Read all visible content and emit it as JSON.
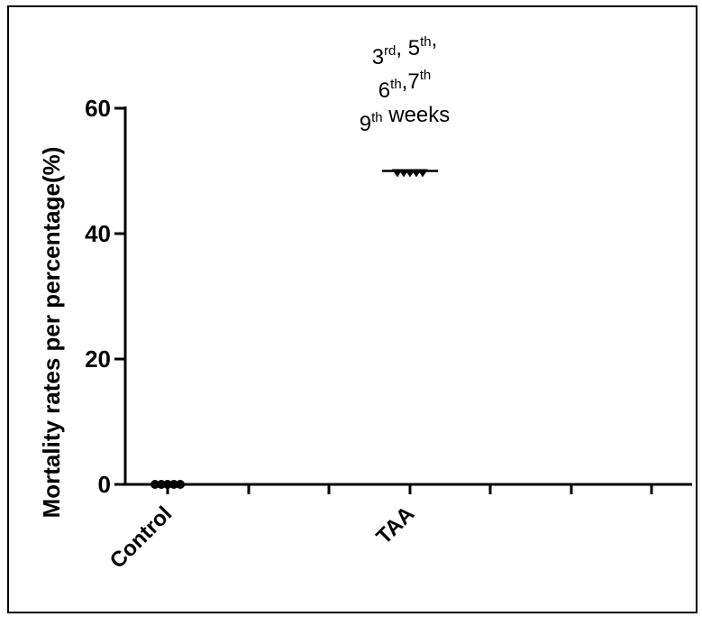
{
  "chart_data": {
    "type": "scatter",
    "ylabel": "Mortality rates per percentage(%)",
    "xlabel": "",
    "ylim": [
      0,
      60
    ],
    "yticks": [
      0,
      20,
      40,
      60
    ],
    "categories": [
      "Control",
      "TAA"
    ],
    "series": [
      {
        "category": "Control",
        "values": [
          0,
          0,
          0,
          0,
          0
        ],
        "marker": "circle",
        "mean": 0
      },
      {
        "category": "TAA",
        "values": [
          50,
          50,
          50,
          50,
          50
        ],
        "marker": "triangle-down",
        "mean": 50
      }
    ],
    "annotations": [
      {
        "category": "TAA",
        "lines": [
          [
            {
              "t": "3"
            },
            {
              "t": "rd",
              "sup": true
            },
            {
              "t": ", 5"
            },
            {
              "t": "th",
              "sup": true
            },
            {
              "t": ","
            }
          ],
          [
            {
              "t": "6"
            },
            {
              "t": "th",
              "sup": true
            },
            {
              "t": ",7"
            },
            {
              "t": "th",
              "sup": true
            }
          ],
          [
            {
              "t": "9"
            },
            {
              "t": "th",
              "sup": true
            },
            {
              "t": " weeks"
            }
          ]
        ]
      }
    ],
    "grid": false,
    "legend": "none",
    "colors": {
      "marker": "#000000",
      "axis": "#000000"
    }
  }
}
